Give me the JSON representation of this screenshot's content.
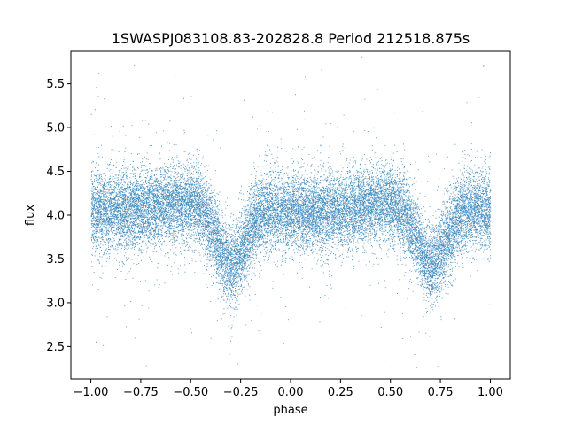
{
  "chart_data": {
    "type": "scatter",
    "title": "1SWASPJ083108.83-202828.8 Period 212518.875s",
    "xlabel": "phase",
    "ylabel": "flux",
    "xlim": [
      -1.1,
      1.1
    ],
    "ylim": [
      2.13,
      5.87
    ],
    "xticks": [
      -1.0,
      -0.75,
      -0.5,
      -0.25,
      0.0,
      0.25,
      0.5,
      0.75,
      1.0
    ],
    "xtick_labels": [
      "−1.00",
      "−0.75",
      "−0.50",
      "−0.25",
      "0.00",
      "0.25",
      "0.50",
      "0.75",
      "1.00"
    ],
    "yticks": [
      2.5,
      3.0,
      3.5,
      4.0,
      4.5,
      5.0,
      5.5
    ],
    "ytick_labels": [
      "2.5",
      "3.0",
      "3.5",
      "4.0",
      "4.5",
      "5.0",
      "5.5"
    ],
    "grid": false,
    "legend": "none",
    "point_color": "#1f77b4",
    "light_curve_model": {
      "phase_range": [
        -1.0,
        1.0
      ],
      "baseline_flux": 4.1,
      "primary_minimum": {
        "phase": -0.3,
        "flux": 3.4
      },
      "secondary_minimum": {
        "phase": 0.7,
        "flux": 3.4
      },
      "scatter_sigma": 0.22
    }
  }
}
